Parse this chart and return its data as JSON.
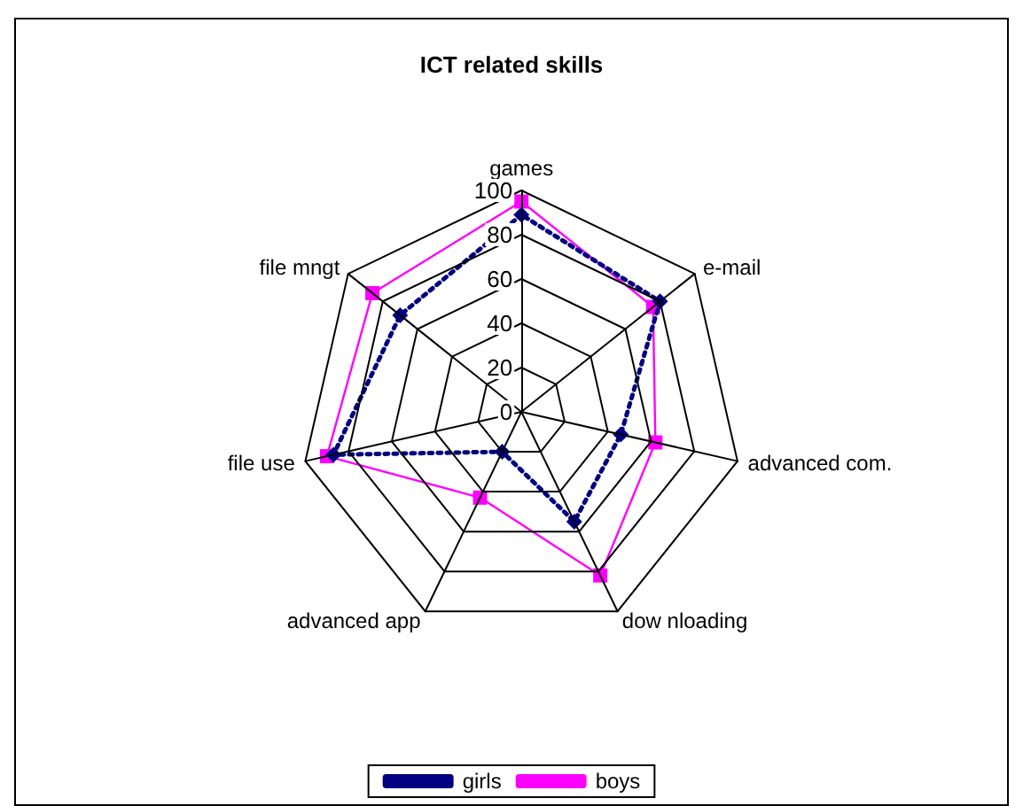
{
  "chart_data": {
    "type": "radar",
    "title": "ICT related skills",
    "categories": [
      "games",
      "e-mail",
      "advanced com.",
      "dow nloading",
      "advanced app",
      "file use",
      "file mngt"
    ],
    "series": [
      {
        "name": "girls",
        "color": "#000080",
        "values": [
          89,
          80,
          46,
          55,
          20,
          87,
          70
        ],
        "marker": "diamond",
        "line_style": "dotted"
      },
      {
        "name": "boys",
        "color": "#ff00ff",
        "values": [
          95,
          76,
          62,
          82,
          43,
          90,
          86
        ],
        "marker": "square",
        "line_style": "solid"
      }
    ],
    "ylim": [
      0,
      100
    ],
    "yticks": [
      0,
      20,
      40,
      60,
      80,
      100
    ],
    "grid": true,
    "legend": "bottom"
  }
}
